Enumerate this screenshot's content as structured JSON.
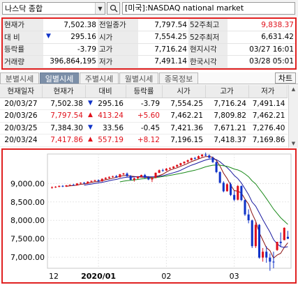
{
  "search": {
    "index_name": "나스닥 종합",
    "market_label": "[미국]:NASDAQ national market"
  },
  "quote": {
    "rows": [
      [
        {
          "label": "현재가",
          "value": "7,502.38"
        },
        {
          "label": "전일종가",
          "value": "7,797.54"
        },
        {
          "label": "52주최고",
          "value": "9,838.37"
        }
      ],
      [
        {
          "label": "대  비",
          "value": "295.16"
        },
        {
          "label": "시가",
          "value": "7,554.25"
        },
        {
          "label": "52주최저",
          "value": "6,631.42"
        }
      ],
      [
        {
          "label": "등락률",
          "value": "-3.79"
        },
        {
          "label": "고가",
          "value": "7,716.24"
        },
        {
          "label": "현지시각",
          "value": "03/27 16:01"
        }
      ],
      [
        {
          "label": "거래량",
          "value": "396,864,195"
        },
        {
          "label": "저가",
          "value": "7,491.14"
        },
        {
          "label": "한국시각",
          "value": "03/28 05:01"
        }
      ]
    ]
  },
  "tabs": [
    "분별시세",
    "일별시세",
    "주별시세",
    "월별시세",
    "종목정보"
  ],
  "chart_button": "차트",
  "daily": {
    "headers": [
      "현재일자",
      "현재가",
      "대비",
      "등락률",
      "시가",
      "고가",
      "저가"
    ],
    "rows": [
      {
        "date": "20/03/27",
        "price": "7,502.38",
        "dir": "down",
        "change": "295.16",
        "rate": "-3.79",
        "open": "7,554.25",
        "high": "7,716.24",
        "low": "7,491.14"
      },
      {
        "date": "20/03/26",
        "price": "7,797.54",
        "dir": "up",
        "change": "413.24",
        "rate": "+5.60",
        "open": "7,462.21",
        "high": "7,809.82",
        "low": "7,462.21"
      },
      {
        "date": "20/03/25",
        "price": "7,384.30",
        "dir": "down",
        "change": "33.56",
        "rate": "-0.45",
        "open": "7,421.36",
        "high": "7,671.21",
        "low": "7,276.40"
      },
      {
        "date": "20/03/24",
        "price": "7,417.86",
        "dir": "up",
        "change": "557.19",
        "rate": "+8.12",
        "open": "7,196.15",
        "high": "7,418.37",
        "low": "7,169.86"
      }
    ]
  },
  "colors": {
    "up": "#e0101a",
    "down": "#1033c8",
    "ma_short": "#8a1010",
    "ma_mid": "#1a1aa0",
    "ma_long": "#1a8a1a",
    "highlight_border": "#e02020"
  },
  "chart_data": {
    "type": "candlestick",
    "y_tick_labels": [
      "9,000.00",
      "8,500.00",
      "8,000.00",
      "7,500.00",
      "7,000.00"
    ],
    "y_ticks": [
      9000,
      8500,
      8000,
      7500,
      7000
    ],
    "x_tick_labels": [
      "12",
      "2020/01",
      "02",
      "03"
    ],
    "x_tick_index": [
      0,
      13,
      32,
      51
    ],
    "ylim": [
      6700,
      9800
    ],
    "candles": [
      {
        "o": 8880,
        "h": 8920,
        "l": 8860,
        "c": 8900
      },
      {
        "o": 8900,
        "h": 8930,
        "l": 8880,
        "c": 8910
      },
      {
        "o": 8910,
        "h": 8945,
        "l": 8895,
        "c": 8935
      },
      {
        "o": 8935,
        "h": 8955,
        "l": 8900,
        "c": 8915
      },
      {
        "o": 8915,
        "h": 8960,
        "l": 8905,
        "c": 8950
      },
      {
        "o": 8950,
        "h": 8975,
        "l": 8930,
        "c": 8965
      },
      {
        "o": 8965,
        "h": 8990,
        "l": 8940,
        "c": 8950
      },
      {
        "o": 8950,
        "h": 9010,
        "l": 8945,
        "c": 9000
      },
      {
        "o": 9000,
        "h": 9030,
        "l": 8990,
        "c": 9020
      },
      {
        "o": 9020,
        "h": 9040,
        "l": 8985,
        "c": 9000
      },
      {
        "o": 9000,
        "h": 9060,
        "l": 8995,
        "c": 9050
      },
      {
        "o": 9050,
        "h": 9080,
        "l": 9030,
        "c": 9070
      },
      {
        "o": 9070,
        "h": 9100,
        "l": 9055,
        "c": 9090
      },
      {
        "o": 9090,
        "h": 9110,
        "l": 9040,
        "c": 9060
      },
      {
        "o": 9060,
        "h": 9140,
        "l": 9050,
        "c": 9125
      },
      {
        "o": 9125,
        "h": 9170,
        "l": 9110,
        "c": 9155
      },
      {
        "o": 9155,
        "h": 9190,
        "l": 9130,
        "c": 9180
      },
      {
        "o": 9180,
        "h": 9210,
        "l": 9160,
        "c": 9200
      },
      {
        "o": 9200,
        "h": 9230,
        "l": 9150,
        "c": 9170
      },
      {
        "o": 9170,
        "h": 9260,
        "l": 9160,
        "c": 9250
      },
      {
        "o": 9250,
        "h": 9290,
        "l": 9230,
        "c": 9270
      },
      {
        "o": 9270,
        "h": 9300,
        "l": 9180,
        "c": 9200
      },
      {
        "o": 9200,
        "h": 9230,
        "l": 9080,
        "c": 9100
      },
      {
        "o": 9100,
        "h": 9160,
        "l": 9050,
        "c": 9140
      },
      {
        "o": 9140,
        "h": 9200,
        "l": 9120,
        "c": 9190
      },
      {
        "o": 9190,
        "h": 9240,
        "l": 9170,
        "c": 9230
      },
      {
        "o": 9230,
        "h": 9260,
        "l": 9140,
        "c": 9160
      },
      {
        "o": 9160,
        "h": 9200,
        "l": 9090,
        "c": 9110
      },
      {
        "o": 9110,
        "h": 9170,
        "l": 9040,
        "c": 9150
      },
      {
        "o": 9150,
        "h": 9300,
        "l": 9140,
        "c": 9290
      },
      {
        "o": 9290,
        "h": 9380,
        "l": 9280,
        "c": 9360
      },
      {
        "o": 9360,
        "h": 9400,
        "l": 9320,
        "c": 9350
      },
      {
        "o": 9350,
        "h": 9420,
        "l": 9340,
        "c": 9400
      },
      {
        "o": 9400,
        "h": 9440,
        "l": 9380,
        "c": 9420
      },
      {
        "o": 9420,
        "h": 9470,
        "l": 9400,
        "c": 9460
      },
      {
        "o": 9460,
        "h": 9520,
        "l": 9440,
        "c": 9500
      },
      {
        "o": 9500,
        "h": 9560,
        "l": 9480,
        "c": 9550
      },
      {
        "o": 9550,
        "h": 9600,
        "l": 9520,
        "c": 9590
      },
      {
        "o": 9590,
        "h": 9650,
        "l": 9560,
        "c": 9630
      },
      {
        "o": 9630,
        "h": 9700,
        "l": 9620,
        "c": 9690
      },
      {
        "o": 9690,
        "h": 9720,
        "l": 9650,
        "c": 9680
      },
      {
        "o": 9680,
        "h": 9760,
        "l": 9670,
        "c": 9740
      },
      {
        "o": 9740,
        "h": 9800,
        "l": 9720,
        "c": 9780
      },
      {
        "o": 9780,
        "h": 9838,
        "l": 9740,
        "c": 9760
      },
      {
        "o": 9760,
        "h": 9790,
        "l": 9680,
        "c": 9700
      },
      {
        "o": 9700,
        "h": 9730,
        "l": 9560,
        "c": 9580
      },
      {
        "o": 9580,
        "h": 9600,
        "l": 9280,
        "c": 9310
      },
      {
        "o": 9310,
        "h": 9330,
        "l": 9000,
        "c": 9020
      },
      {
        "o": 9020,
        "h": 9060,
        "l": 8760,
        "c": 8790
      },
      {
        "o": 8790,
        "h": 9010,
        "l": 8780,
        "c": 8980
      },
      {
        "o": 8980,
        "h": 9030,
        "l": 8660,
        "c": 8690
      },
      {
        "o": 8690,
        "h": 8800,
        "l": 8520,
        "c": 8560
      },
      {
        "o": 8560,
        "h": 8960,
        "l": 8540,
        "c": 8930
      },
      {
        "o": 8930,
        "h": 8950,
        "l": 8520,
        "c": 8550
      },
      {
        "o": 8550,
        "h": 8570,
        "l": 8120,
        "c": 8160
      },
      {
        "o": 8160,
        "h": 8300,
        "l": 7920,
        "c": 8000
      },
      {
        "o": 8000,
        "h": 8020,
        "l": 7250,
        "c": 7300
      },
      {
        "o": 7300,
        "h": 7950,
        "l": 7250,
        "c": 7880
      },
      {
        "o": 7880,
        "h": 7900,
        "l": 6960,
        "c": 6990
      },
      {
        "o": 6990,
        "h": 7250,
        "l": 6880,
        "c": 7150
      },
      {
        "o": 7150,
        "h": 7300,
        "l": 6850,
        "c": 6990
      },
      {
        "o": 6990,
        "h": 7100,
        "l": 6632,
        "c": 6880
      },
      {
        "o": 6880,
        "h": 7150,
        "l": 6700,
        "c": 6860
      },
      {
        "o": 7196,
        "h": 7418,
        "l": 7170,
        "c": 7418
      },
      {
        "o": 7421,
        "h": 7671,
        "l": 7276,
        "c": 7384
      },
      {
        "o": 7462,
        "h": 7810,
        "l": 7462,
        "c": 7798
      },
      {
        "o": 7554,
        "h": 7716,
        "l": 7491,
        "c": 7502
      }
    ]
  }
}
